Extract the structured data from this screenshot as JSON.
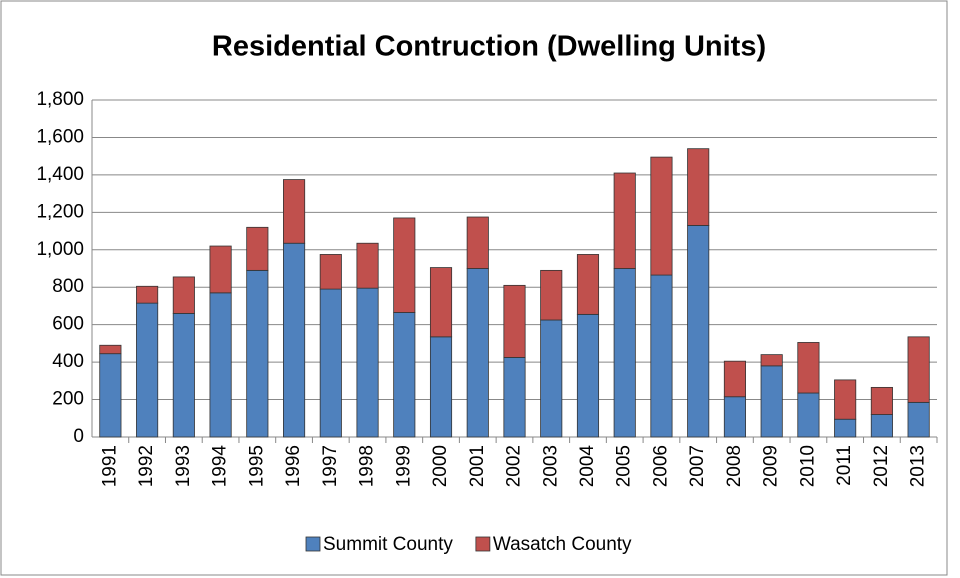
{
  "chart_data": {
    "type": "stacked_bar",
    "title": "Residential Contruction (Dwelling Units)",
    "categories": [
      "1991",
      "1992",
      "1993",
      "1994",
      "1995",
      "1996",
      "1997",
      "1998",
      "1999",
      "2000",
      "2001",
      "2002",
      "2003",
      "2004",
      "2005",
      "2006",
      "2007",
      "2008",
      "2009",
      "2010",
      "2011",
      "2012",
      "2013"
    ],
    "series": [
      {
        "name": "Summit County",
        "color": "#4f81bd",
        "values": [
          445,
          715,
          660,
          770,
          890,
          1035,
          790,
          795,
          665,
          535,
          900,
          425,
          625,
          655,
          900,
          865,
          1130,
          215,
          380,
          235,
          95,
          120,
          185
        ]
      },
      {
        "name": "Wasatch County",
        "color": "#c0504d",
        "values": [
          45,
          90,
          195,
          250,
          230,
          340,
          185,
          240,
          505,
          370,
          275,
          385,
          265,
          320,
          510,
          630,
          410,
          190,
          60,
          270,
          210,
          145,
          350
        ]
      }
    ],
    "ylim": [
      0,
      1800
    ],
    "yticks": [
      0,
      200,
      400,
      600,
      800,
      {
        "value": 1000,
        "label": "1,000"
      },
      {
        "value": 1200,
        "label": "1,200"
      },
      {
        "value": 1400,
        "label": "1,400"
      },
      {
        "value": 1600,
        "label": "1,600"
      },
      {
        "value": 1800,
        "label": "1,800"
      }
    ],
    "grid": true,
    "legend": "bottom"
  }
}
